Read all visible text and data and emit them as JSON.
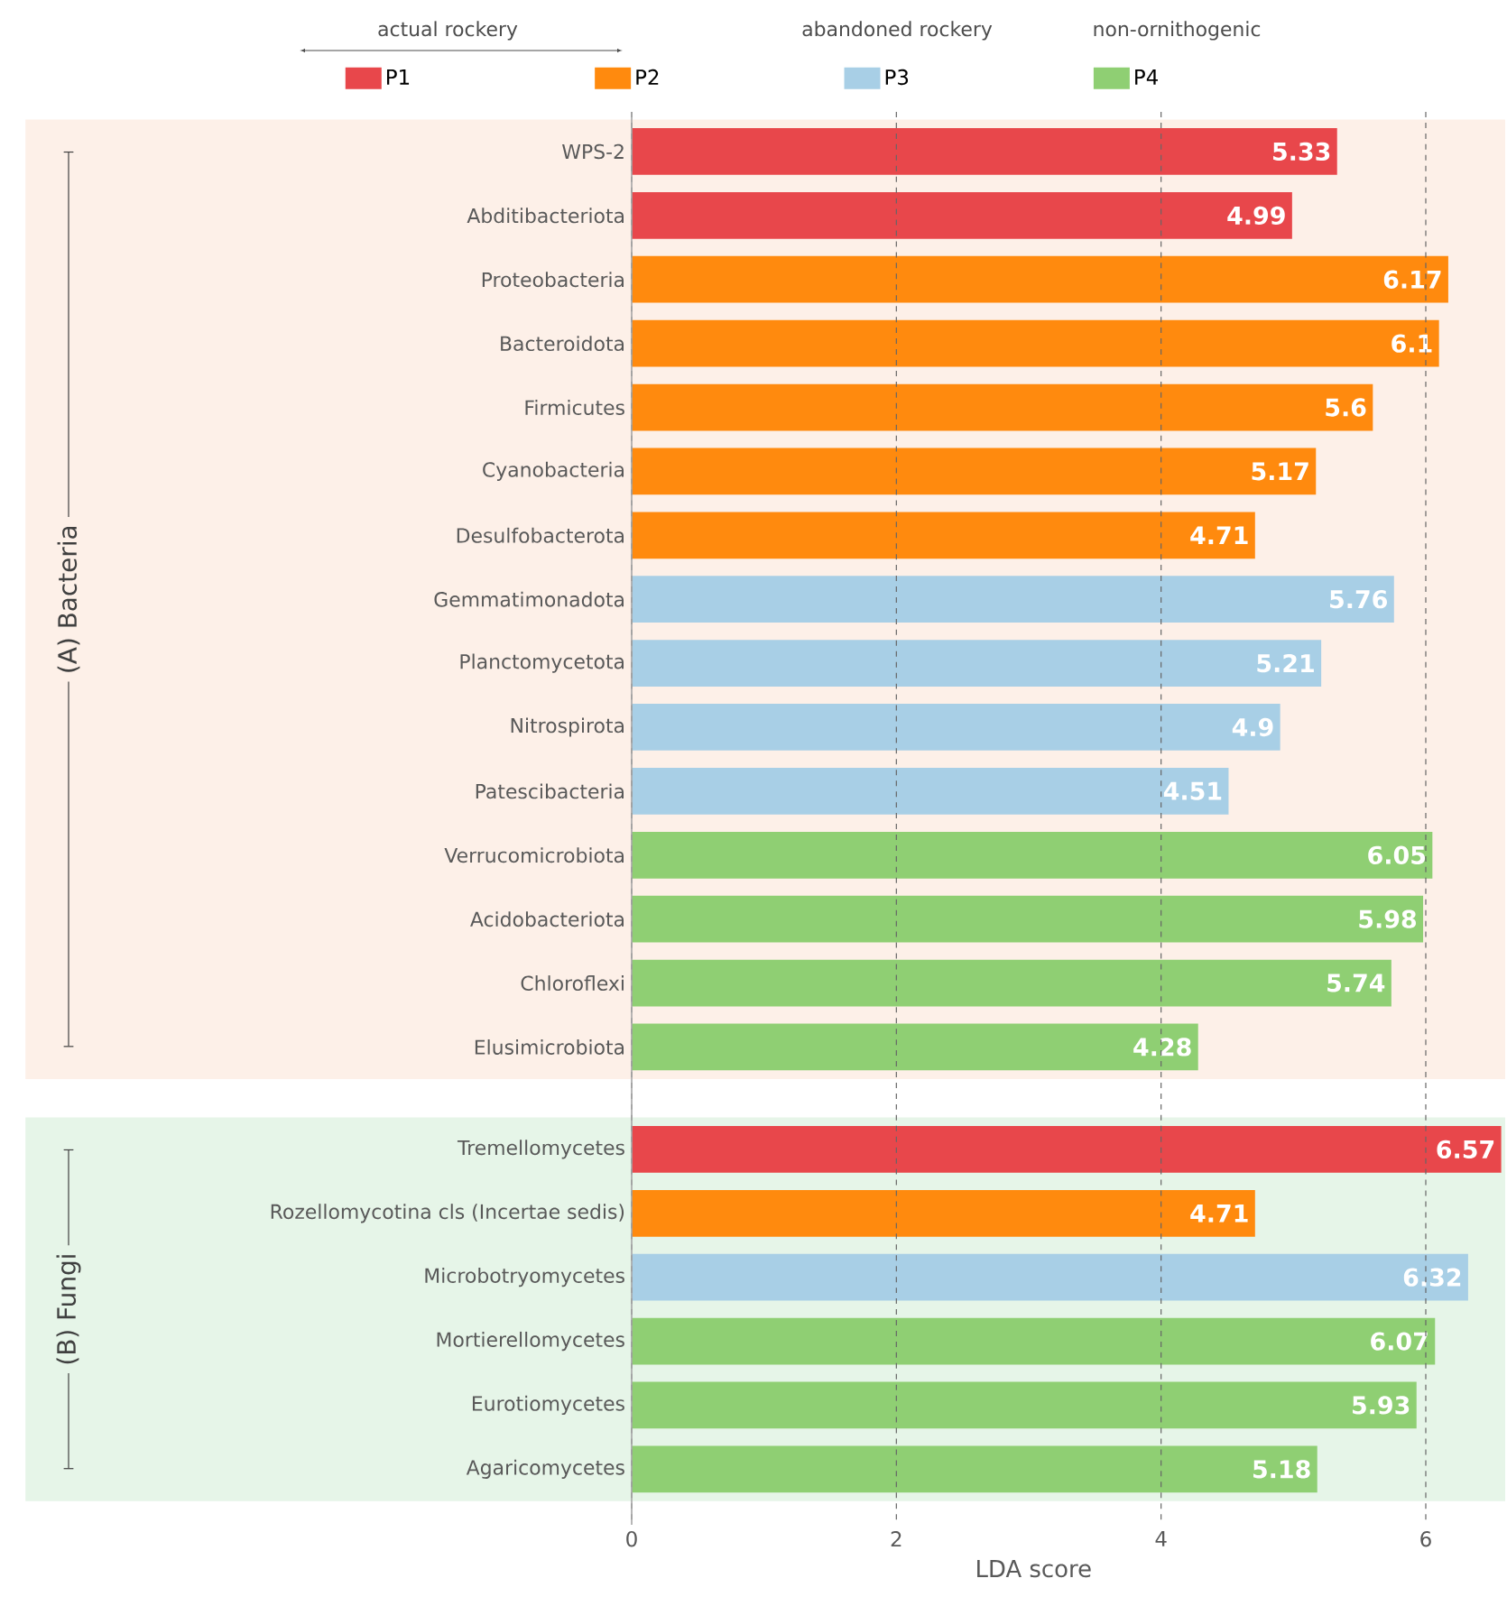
{
  "chart_data": {
    "type": "bar",
    "orientation": "horizontal",
    "categories": [
      "WPS-2",
      "Abditibacteriota",
      "Proteobacteria",
      "Bacteroidota",
      "Firmicutes",
      "Cyanobacteria",
      "Desulfobacterota",
      "Gemmatimonadota",
      "Planctomycetota",
      "Nitrospirota",
      "Patescibacteria",
      "Verrucomicrobiota",
      "Acidobacteriota",
      "Chloroflexi",
      "Elusimicrobiota",
      "Tremellomycetes",
      "Rozellomycotina cls (Incertae sedis)",
      "Microbotryomycetes",
      "Mortierellomycetes",
      "Eurotiomycetes",
      "Agaricomycetes"
    ],
    "series": [
      {
        "name": "P1",
        "color": "#e8474b",
        "values": [
          5.33,
          4.99,
          null,
          null,
          null,
          null,
          null,
          null,
          null,
          null,
          null,
          null,
          null,
          null,
          null,
          6.57,
          null,
          null,
          null,
          null,
          null
        ]
      },
      {
        "name": "P2",
        "color": "#ff8a0e",
        "values": [
          null,
          null,
          6.17,
          6.1,
          5.6,
          5.17,
          4.71,
          null,
          null,
          null,
          null,
          null,
          null,
          null,
          null,
          null,
          4.71,
          null,
          null,
          null,
          null
        ]
      },
      {
        "name": "P3",
        "color": "#a8cfe6",
        "values": [
          null,
          null,
          null,
          null,
          null,
          null,
          null,
          5.76,
          5.21,
          4.9,
          4.51,
          null,
          null,
          null,
          null,
          null,
          null,
          6.32,
          null,
          null,
          null
        ]
      },
      {
        "name": "P4",
        "color": "#8fcf73",
        "values": [
          null,
          null,
          null,
          null,
          null,
          null,
          null,
          null,
          null,
          null,
          null,
          6.05,
          5.98,
          5.74,
          4.28,
          null,
          null,
          null,
          6.07,
          5.93,
          5.18
        ]
      }
    ],
    "xlim": [
      0,
      6.6
    ],
    "xticks": [
      0,
      2,
      4,
      6
    ],
    "xlabel": "LDA score",
    "grid": "x",
    "legend": "top",
    "data_labels": true,
    "bands": [
      {
        "axis": "y",
        "from": "WPS-2",
        "to": "Elusimicrobiota",
        "label": "(A) Bacteria",
        "color": "#fdf0e8"
      },
      {
        "axis": "y",
        "from": "Tremellomycetes",
        "to": "Agaricomycetes",
        "label": "(B) Fungi",
        "color": "#e6f5e8"
      }
    ],
    "annotations": [
      "actual rockery",
      "abandoned rockery",
      "non-ornithogenic"
    ]
  }
}
